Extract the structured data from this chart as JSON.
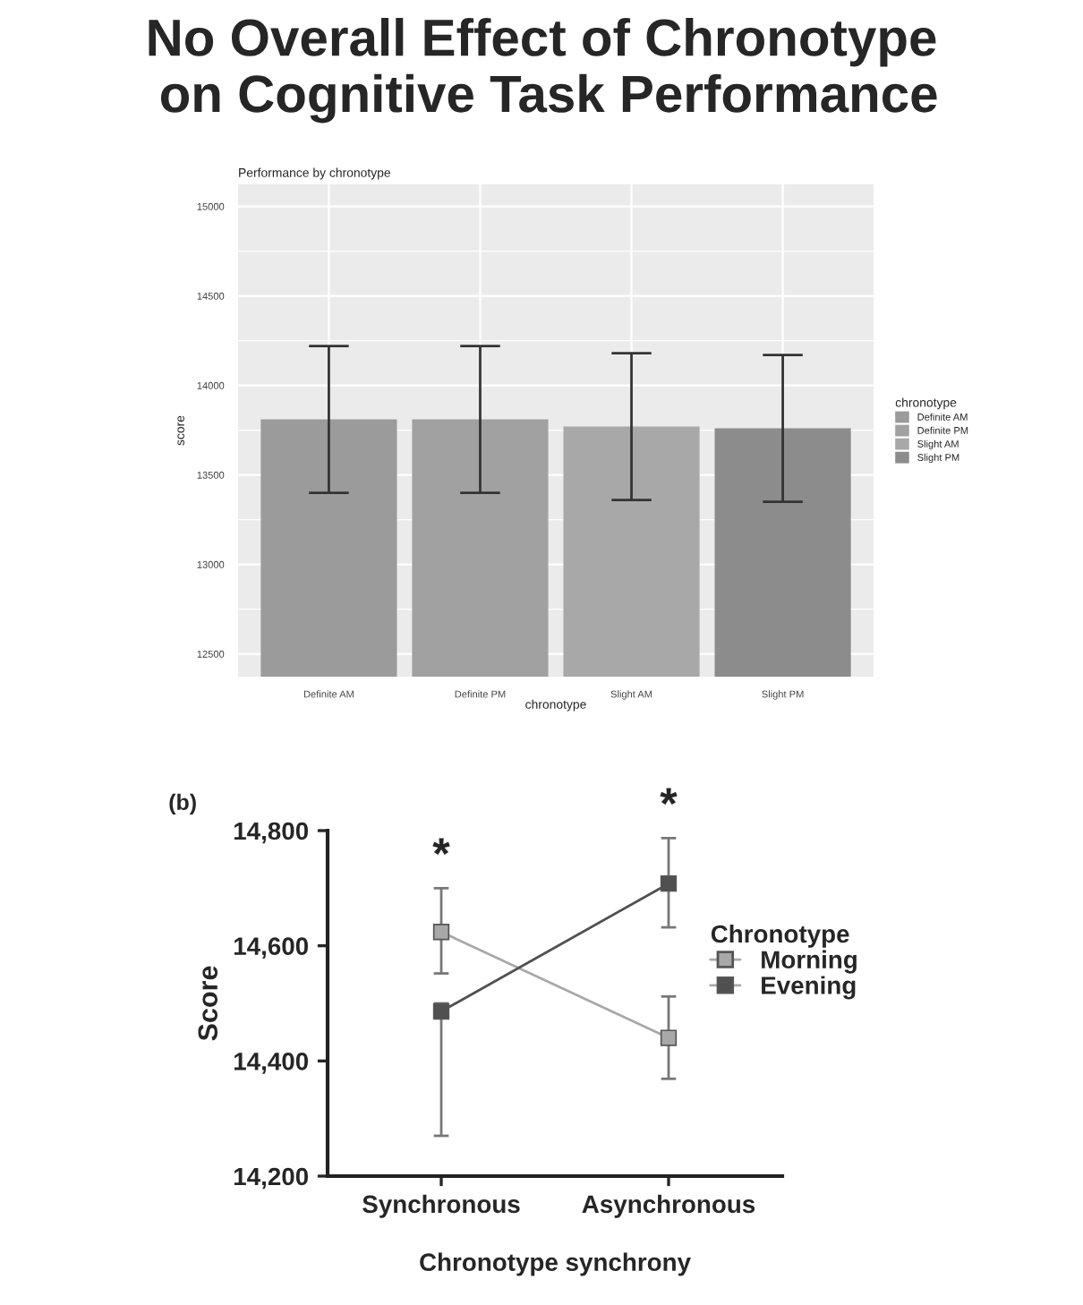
{
  "chart_data": [
    {
      "type": "bar",
      "title": "No Overall Effect of Chronotype\n on Cognitive Task Performance",
      "subtitle": "Performance by chronotype",
      "xlabel": "chronotype",
      "ylabel": "score",
      "legend_title": "chronotype",
      "categories": [
        "Definite AM",
        "Definite PM",
        "Slight AM",
        "Slight PM"
      ],
      "series": [
        {
          "name": "Definite AM",
          "color": "#9b9b9b",
          "values": [
            13810,
            null,
            null,
            null
          ],
          "errors": [
            [
              13400,
              14220
            ],
            null,
            null,
            null
          ]
        },
        {
          "name": "Definite PM",
          "color": "#a1a1a1",
          "values": [
            null,
            13810,
            null,
            null
          ],
          "errors": [
            null,
            [
              13400,
              14220
            ],
            null,
            null
          ]
        },
        {
          "name": "Slight AM",
          "color": "#a8a8a8",
          "values": [
            null,
            null,
            13770,
            null
          ],
          "errors": [
            null,
            null,
            [
              13360,
              14180
            ],
            null
          ]
        },
        {
          "name": "Slight PM",
          "color": "#8c8c8c",
          "values": [
            null,
            null,
            null,
            13760
          ],
          "errors": [
            null,
            null,
            null,
            [
              13350,
              14170
            ]
          ]
        }
      ],
      "ylim": [
        12373,
        15123
      ],
      "yticks": [
        12500,
        13000,
        13500,
        14000,
        14500,
        15000
      ],
      "grid": true,
      "legend": "right"
    },
    {
      "type": "line",
      "xlabel": "Chronotype synchrony",
      "ylabel": "Score",
      "legend_title": "Chronotype",
      "categories": [
        "Synchronous",
        "Asynchronous"
      ],
      "series": [
        {
          "name": "Morning",
          "color": "#a8a8a8",
          "values": [
            14624,
            14440
          ],
          "errors": [
            [
              14552,
              14700
            ],
            [
              14369,
              14512
            ]
          ]
        },
        {
          "name": "Evening",
          "color": "#505050",
          "values": [
            14486,
            14708
          ],
          "errors": [
            [
              14270,
              14500
            ],
            [
              14632,
              14787
            ]
          ]
        }
      ],
      "ylim": [
        14200,
        14800
      ],
      "yticks": [
        {
          "value": 14200,
          "label": "14,200"
        },
        {
          "value": 14400,
          "label": "14,400"
        },
        {
          "value": 14600,
          "label": "14,600"
        },
        {
          "value": 14800,
          "label": "14,800"
        }
      ],
      "marker": "square",
      "grid": false,
      "legend": "right",
      "annotations": [
        "(b)",
        "*",
        "*"
      ]
    }
  ]
}
